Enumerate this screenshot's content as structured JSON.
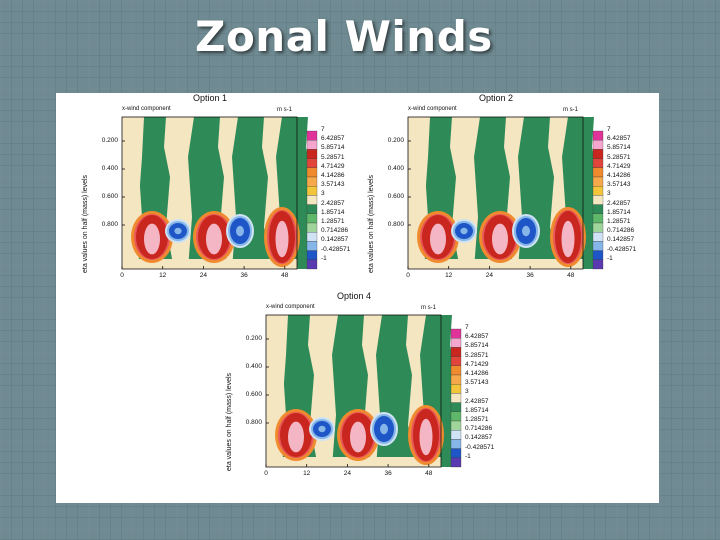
{
  "slide": {
    "title": "Zonal Winds"
  },
  "colors": {
    "beige": "#f5e6c2",
    "green": "#2e8b57",
    "lightgreen": "#9fd49a",
    "red": "#c8261e",
    "lightred": "#e8585a",
    "pink": "#f4b6c4",
    "orange": "#f08a2e",
    "yellow": "#f2c53a",
    "blue": "#1e56c8",
    "lightblue": "#86b6e8",
    "paleblue": "#cfe3f5",
    "purple": "#5a3ab0",
    "magenta": "#e0339a"
  },
  "chart_data": [
    {
      "type": "heatmap",
      "title": "Option 1",
      "component_label": "x-wind component",
      "units": "m s-1",
      "ylabel": "eta values on half (mass) levels",
      "x_ticks": [
        "0",
        "12",
        "24",
        "36",
        "48"
      ],
      "y_ticks": [
        "0.200",
        "0.400",
        "0.600",
        "0.800"
      ],
      "colorbar_labels": [
        "7",
        "6.42857",
        "5.85714",
        "5.28571",
        "4.71429",
        "4.14286",
        "3.57143",
        "3",
        "2.42857",
        "1.85714",
        "1.28571",
        "0.714286",
        "0.142857",
        "-0.428571",
        "-1"
      ]
    },
    {
      "type": "heatmap",
      "title": "Option 2",
      "component_label": "x-wind component",
      "units": "m s-1",
      "ylabel": "eta values on half (mass) levels",
      "x_ticks": [
        "0",
        "12",
        "24",
        "36",
        "48"
      ],
      "y_ticks": [
        "0.200",
        "0.400",
        "0.600",
        "0.800"
      ],
      "colorbar_labels": [
        "7",
        "6.42857",
        "5.85714",
        "5.28571",
        "4.71429",
        "4.14286",
        "3.57143",
        "3",
        "2.42857",
        "1.85714",
        "1.28571",
        "0.714286",
        "0.142857",
        "-0.428571",
        "-1"
      ]
    },
    {
      "type": "heatmap",
      "title": "Option 4",
      "component_label": "x-wind component",
      "units": "m s-1",
      "ylabel": "eta values on half (mass) levels",
      "x_ticks": [
        "0",
        "12",
        "24",
        "36",
        "48"
      ],
      "y_ticks": [
        "0.200",
        "0.400",
        "0.600",
        "0.800"
      ],
      "colorbar_labels": [
        "7",
        "6.42857",
        "5.85714",
        "5.28571",
        "4.71429",
        "4.14286",
        "3.57143",
        "3",
        "2.42857",
        "1.85714",
        "1.28571",
        "0.714286",
        "0.142857",
        "-0.428571",
        "-1"
      ]
    }
  ]
}
